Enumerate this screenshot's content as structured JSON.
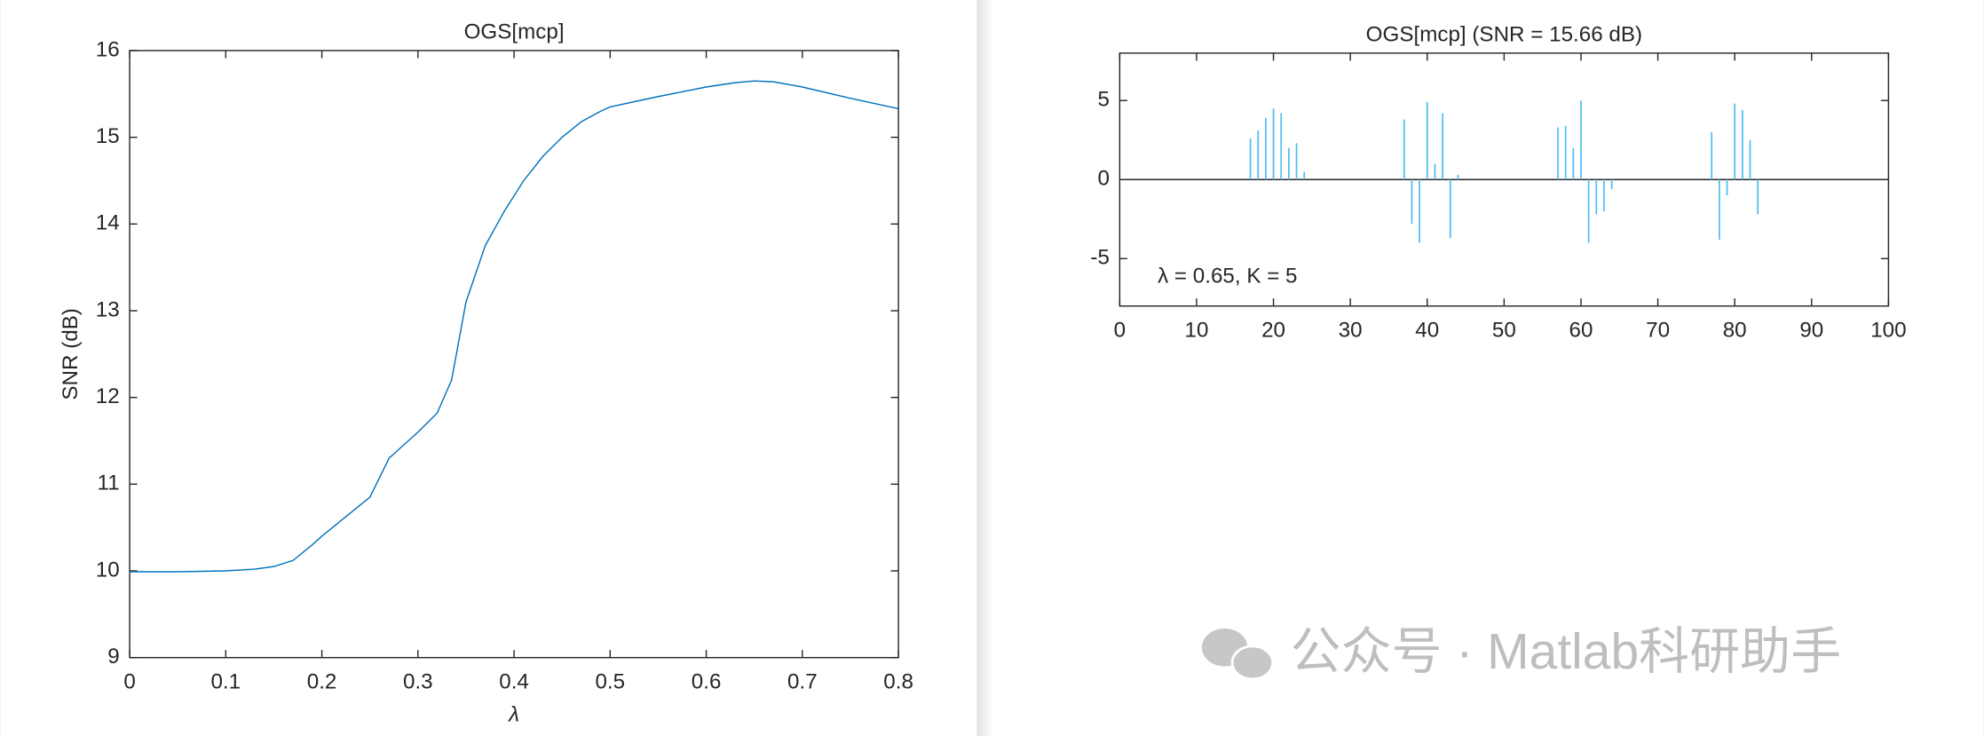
{
  "chart_data": [
    {
      "type": "line",
      "title": "OGS[mcp]",
      "xlabel": "λ",
      "ylabel": "SNR (dB)",
      "color": "#0072bd",
      "x": [
        0,
        0.05,
        0.1,
        0.13,
        0.15,
        0.17,
        0.19,
        0.2,
        0.22,
        0.25,
        0.27,
        0.28,
        0.3,
        0.32,
        0.335,
        0.35,
        0.37,
        0.39,
        0.41,
        0.43,
        0.45,
        0.47,
        0.49,
        0.5,
        0.55,
        0.6,
        0.63,
        0.65,
        0.67,
        0.7,
        0.75,
        0.8
      ],
      "values": [
        9.99,
        9.99,
        10.0,
        10.02,
        10.05,
        10.12,
        10.3,
        10.4,
        10.58,
        10.85,
        11.3,
        11.4,
        11.6,
        11.82,
        12.2,
        13.1,
        13.75,
        14.15,
        14.5,
        14.78,
        15.0,
        15.18,
        15.3,
        15.35,
        15.47,
        15.58,
        15.63,
        15.65,
        15.64,
        15.58,
        15.45,
        15.33
      ],
      "xlim": [
        0,
        0.8
      ],
      "xticks": [
        0,
        0.1,
        0.2,
        0.3,
        0.4,
        0.5,
        0.6,
        0.7,
        0.8
      ],
      "ylim": [
        9,
        16
      ],
      "yticks": [
        9,
        10,
        11,
        12,
        13,
        14,
        15,
        16
      ]
    },
    {
      "type": "stem",
      "title": "OGS[mcp] (SNR = 15.66 dB)",
      "annotation": "λ = 0.65, K = 5",
      "color": "#4dbeee",
      "x": [
        17,
        18,
        19,
        20,
        21,
        22,
        23,
        24,
        37,
        38,
        39,
        40,
        41,
        42,
        43,
        44,
        57,
        58,
        59,
        60,
        61,
        62,
        63,
        64,
        77,
        78,
        79,
        80,
        81,
        82,
        83
      ],
      "values": [
        2.6,
        3.1,
        3.9,
        4.5,
        4.2,
        2.0,
        2.3,
        0.5,
        3.8,
        -2.8,
        -4.0,
        4.9,
        1.0,
        4.2,
        -3.7,
        0.3,
        3.3,
        3.4,
        2.0,
        5.0,
        -4.0,
        -2.2,
        -2.0,
        -0.6,
        3.0,
        -3.8,
        -1.0,
        4.8,
        4.4,
        2.5,
        -2.2
      ],
      "xlim": [
        0,
        100
      ],
      "xticks": [
        0,
        10,
        20,
        30,
        40,
        50,
        60,
        70,
        80,
        90,
        100
      ],
      "ylim": [
        -8,
        8
      ],
      "yticks": [
        -5,
        0,
        5
      ]
    }
  ],
  "watermark": "公众号 · Matlab科研助手"
}
